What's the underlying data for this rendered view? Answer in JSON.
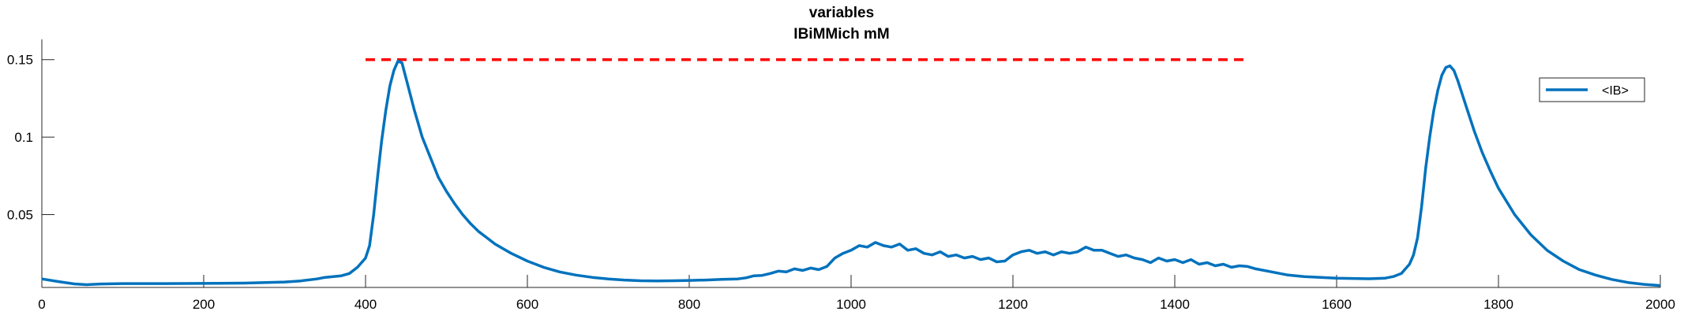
{
  "chart_data": {
    "type": "line",
    "title": "variables",
    "subtitle": "IBiMMich mM",
    "xlabel": "",
    "ylabel": "",
    "xlim": [
      0,
      2000
    ],
    "ylim": [
      0.003,
      0.158
    ],
    "x_ticks": [
      0,
      200,
      400,
      600,
      800,
      1000,
      1200,
      1400,
      1600,
      1800,
      2000
    ],
    "x_tick_labels": [
      "0",
      "200",
      "400",
      "600",
      "800",
      "1000",
      "1200",
      "1400",
      "1600",
      "1800",
      "2000"
    ],
    "y_ticks": [
      0.05,
      0.1,
      0.15
    ],
    "y_tick_labels": [
      "0.05",
      "0.1",
      "0.15"
    ],
    "grid": false,
    "legend": {
      "position": "top-right",
      "entries": [
        "<IB>"
      ]
    },
    "reference_lines": [
      {
        "type": "horizontal",
        "y": 0.15,
        "x_range": [
          400,
          1490
        ],
        "style": "dashed",
        "color": "#ff0000"
      }
    ],
    "series": [
      {
        "name": "<IB>",
        "color": "#0072bd",
        "points": [
          [
            0,
            0.0085
          ],
          [
            20,
            0.0068
          ],
          [
            40,
            0.0053
          ],
          [
            55,
            0.0048
          ],
          [
            70,
            0.0052
          ],
          [
            100,
            0.0055
          ],
          [
            150,
            0.0055
          ],
          [
            200,
            0.0056
          ],
          [
            250,
            0.0058
          ],
          [
            300,
            0.0065
          ],
          [
            320,
            0.0072
          ],
          [
            340,
            0.0085
          ],
          [
            350,
            0.0095
          ],
          [
            360,
            0.01
          ],
          [
            370,
            0.0105
          ],
          [
            380,
            0.012
          ],
          [
            390,
            0.016
          ],
          [
            400,
            0.022
          ],
          [
            405,
            0.03
          ],
          [
            410,
            0.05
          ],
          [
            415,
            0.075
          ],
          [
            420,
            0.098
          ],
          [
            425,
            0.117
          ],
          [
            430,
            0.133
          ],
          [
            435,
            0.143
          ],
          [
            440,
            0.149
          ],
          [
            445,
            0.148
          ],
          [
            450,
            0.138
          ],
          [
            460,
            0.118
          ],
          [
            470,
            0.1
          ],
          [
            480,
            0.087
          ],
          [
            490,
            0.074
          ],
          [
            500,
            0.065
          ],
          [
            510,
            0.057
          ],
          [
            520,
            0.05
          ],
          [
            530,
            0.044
          ],
          [
            540,
            0.039
          ],
          [
            550,
            0.035
          ],
          [
            560,
            0.031
          ],
          [
            580,
            0.025
          ],
          [
            600,
            0.02
          ],
          [
            620,
            0.016
          ],
          [
            640,
            0.013
          ],
          [
            660,
            0.011
          ],
          [
            680,
            0.0095
          ],
          [
            700,
            0.0085
          ],
          [
            720,
            0.0078
          ],
          [
            740,
            0.0073
          ],
          [
            760,
            0.0072
          ],
          [
            780,
            0.0073
          ],
          [
            800,
            0.0075
          ],
          [
            820,
            0.0078
          ],
          [
            840,
            0.0082
          ],
          [
            860,
            0.0085
          ],
          [
            870,
            0.0092
          ],
          [
            880,
            0.0105
          ],
          [
            890,
            0.0108
          ],
          [
            900,
            0.012
          ],
          [
            910,
            0.0135
          ],
          [
            920,
            0.013
          ],
          [
            930,
            0.015
          ],
          [
            940,
            0.014
          ],
          [
            950,
            0.0155
          ],
          [
            960,
            0.0145
          ],
          [
            970,
            0.0165
          ],
          [
            980,
            0.022
          ],
          [
            990,
            0.025
          ],
          [
            1000,
            0.027
          ],
          [
            1010,
            0.03
          ],
          [
            1020,
            0.029
          ],
          [
            1030,
            0.032
          ],
          [
            1040,
            0.03
          ],
          [
            1050,
            0.029
          ],
          [
            1060,
            0.031
          ],
          [
            1070,
            0.027
          ],
          [
            1080,
            0.028
          ],
          [
            1090,
            0.025
          ],
          [
            1100,
            0.024
          ],
          [
            1110,
            0.026
          ],
          [
            1120,
            0.023
          ],
          [
            1130,
            0.024
          ],
          [
            1140,
            0.022
          ],
          [
            1150,
            0.023
          ],
          [
            1160,
            0.021
          ],
          [
            1170,
            0.022
          ],
          [
            1180,
            0.0195
          ],
          [
            1190,
            0.02
          ],
          [
            1200,
            0.024
          ],
          [
            1210,
            0.026
          ],
          [
            1220,
            0.027
          ],
          [
            1230,
            0.025
          ],
          [
            1240,
            0.026
          ],
          [
            1250,
            0.024
          ],
          [
            1260,
            0.026
          ],
          [
            1270,
            0.025
          ],
          [
            1280,
            0.026
          ],
          [
            1290,
            0.029
          ],
          [
            1300,
            0.027
          ],
          [
            1310,
            0.027
          ],
          [
            1320,
            0.025
          ],
          [
            1330,
            0.023
          ],
          [
            1340,
            0.024
          ],
          [
            1350,
            0.022
          ],
          [
            1360,
            0.021
          ],
          [
            1370,
            0.019
          ],
          [
            1380,
            0.022
          ],
          [
            1390,
            0.02
          ],
          [
            1400,
            0.021
          ],
          [
            1410,
            0.019
          ],
          [
            1420,
            0.021
          ],
          [
            1430,
            0.018
          ],
          [
            1440,
            0.019
          ],
          [
            1450,
            0.017
          ],
          [
            1460,
            0.018
          ],
          [
            1470,
            0.016
          ],
          [
            1480,
            0.017
          ],
          [
            1490,
            0.0165
          ],
          [
            1500,
            0.015
          ],
          [
            1520,
            0.013
          ],
          [
            1540,
            0.011
          ],
          [
            1560,
            0.01
          ],
          [
            1580,
            0.0095
          ],
          [
            1600,
            0.009
          ],
          [
            1620,
            0.0088
          ],
          [
            1640,
            0.0086
          ],
          [
            1650,
            0.0088
          ],
          [
            1660,
            0.009
          ],
          [
            1670,
            0.01
          ],
          [
            1680,
            0.012
          ],
          [
            1690,
            0.018
          ],
          [
            1695,
            0.024
          ],
          [
            1700,
            0.035
          ],
          [
            1705,
            0.055
          ],
          [
            1710,
            0.08
          ],
          [
            1715,
            0.1
          ],
          [
            1720,
            0.117
          ],
          [
            1725,
            0.13
          ],
          [
            1730,
            0.14
          ],
          [
            1735,
            0.145
          ],
          [
            1740,
            0.146
          ],
          [
            1745,
            0.143
          ],
          [
            1750,
            0.136
          ],
          [
            1760,
            0.12
          ],
          [
            1770,
            0.104
          ],
          [
            1780,
            0.09
          ],
          [
            1790,
            0.078
          ],
          [
            1800,
            0.067
          ],
          [
            1820,
            0.05
          ],
          [
            1840,
            0.037
          ],
          [
            1860,
            0.027
          ],
          [
            1880,
            0.02
          ],
          [
            1900,
            0.0145
          ],
          [
            1920,
            0.011
          ],
          [
            1940,
            0.0082
          ],
          [
            1960,
            0.0062
          ],
          [
            1980,
            0.005
          ],
          [
            2000,
            0.0042
          ]
        ]
      }
    ]
  }
}
